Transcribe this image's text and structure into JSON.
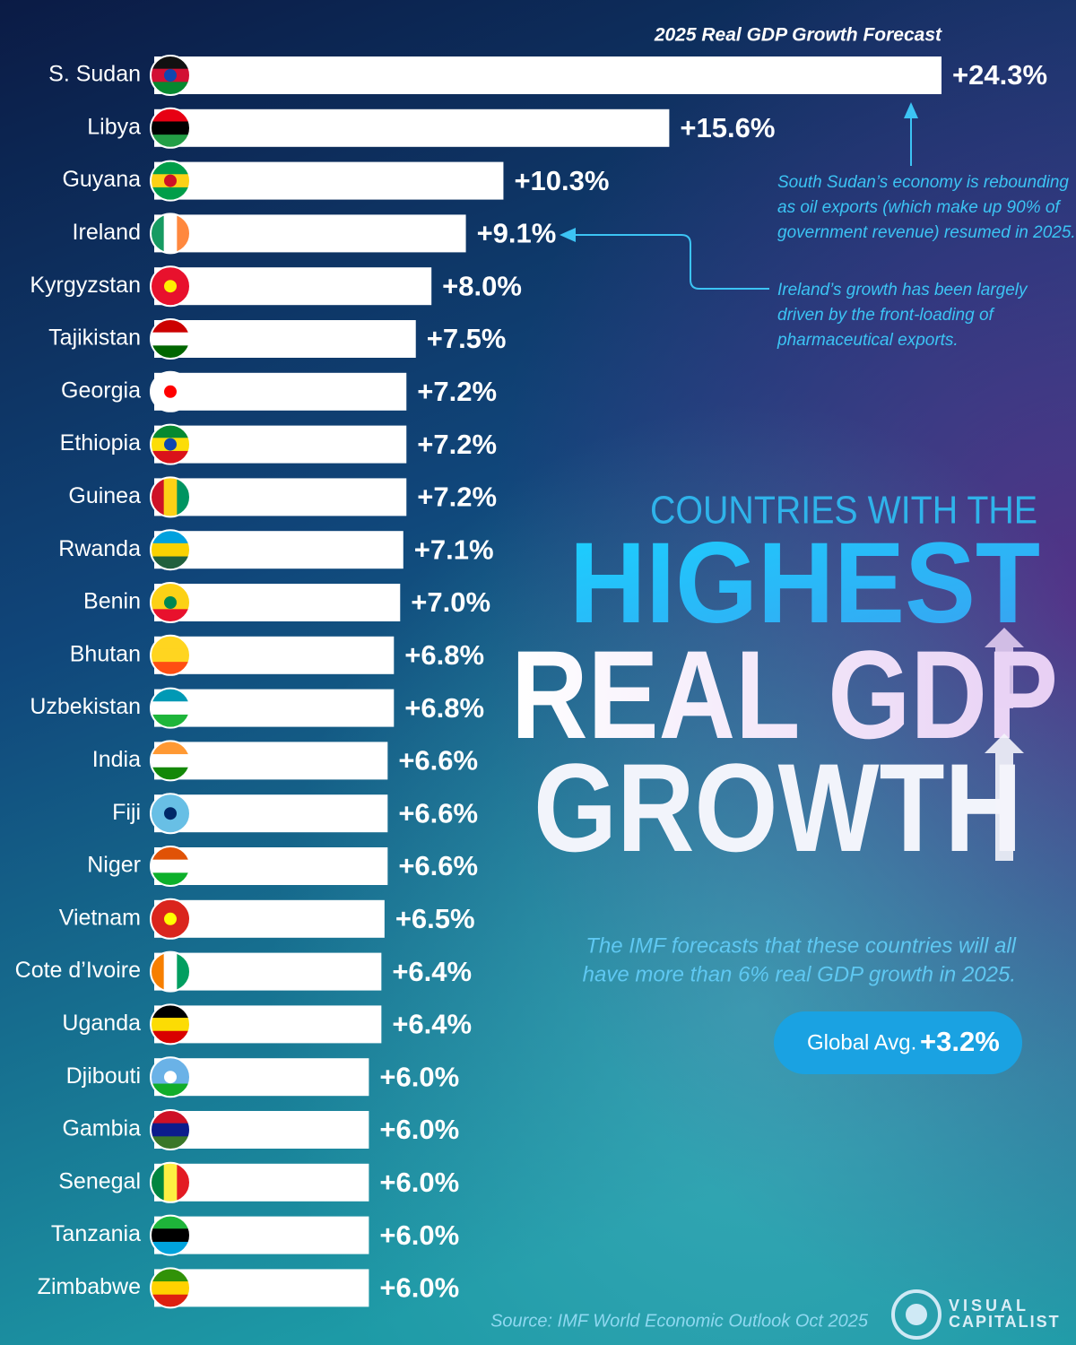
{
  "chart_data": {
    "type": "bar",
    "orientation": "horizontal",
    "title": "2025 Real GDP Growth Forecast",
    "categories": [
      "S. Sudan",
      "Libya",
      "Guyana",
      "Ireland",
      "Kyrgyzstan",
      "Tajikistan",
      "Georgia",
      "Ethiopia",
      "Guinea",
      "Rwanda",
      "Benin",
      "Bhutan",
      "Uzbekistan",
      "India",
      "Fiji",
      "Niger",
      "Vietnam",
      "Cote d’Ivoire",
      "Uganda",
      "Djibouti",
      "Gambia",
      "Senegal",
      "Tanzania",
      "Zimbabwe"
    ],
    "values": [
      24.3,
      15.6,
      10.3,
      9.1,
      8.0,
      7.5,
      7.2,
      7.2,
      7.2,
      7.1,
      7.0,
      6.8,
      6.8,
      6.6,
      6.6,
      6.6,
      6.5,
      6.4,
      6.4,
      6.0,
      6.0,
      6.0,
      6.0,
      6.0
    ],
    "value_labels": [
      "+24.3%",
      "+15.6%",
      "+10.3%",
      "+9.1%",
      "+8.0%",
      "+7.5%",
      "+7.2%",
      "+7.2%",
      "+7.2%",
      "+7.1%",
      "+7.0%",
      "+6.8%",
      "+6.8%",
      "+6.6%",
      "+6.6%",
      "+6.6%",
      "+6.5%",
      "+6.4%",
      "+6.4%",
      "+6.0%",
      "+6.0%",
      "+6.0%",
      "+6.0%",
      "+6.0%"
    ],
    "color": "#ffffff",
    "annotations": [
      {
        "lines": [
          "South Sudan’s economy is rebounding",
          "as oil exports (which make up 90% of",
          "government revenue) resumed in 2025."
        ]
      },
      {
        "lines": [
          "Ireland’s growth has been largely",
          "driven by the front-loading of",
          "pharmaceutical exports."
        ]
      }
    ]
  },
  "headline": {
    "kicker": "COUNTRIES WITH THE",
    "lines": [
      "HIGHEST",
      "REAL GDP",
      "GROWTH"
    ]
  },
  "note": {
    "lines": [
      "The IMF forecasts that these countries will all",
      "have more than 6% real GDP growth in 2025."
    ]
  },
  "global_avg": {
    "label": "Global Avg.",
    "value_label": "+3.2%"
  },
  "source": "Source: IMF World Economic Outlook Oct 2025",
  "logo": {
    "lines": [
      "VISUAL",
      "CAPITALIST"
    ]
  }
}
